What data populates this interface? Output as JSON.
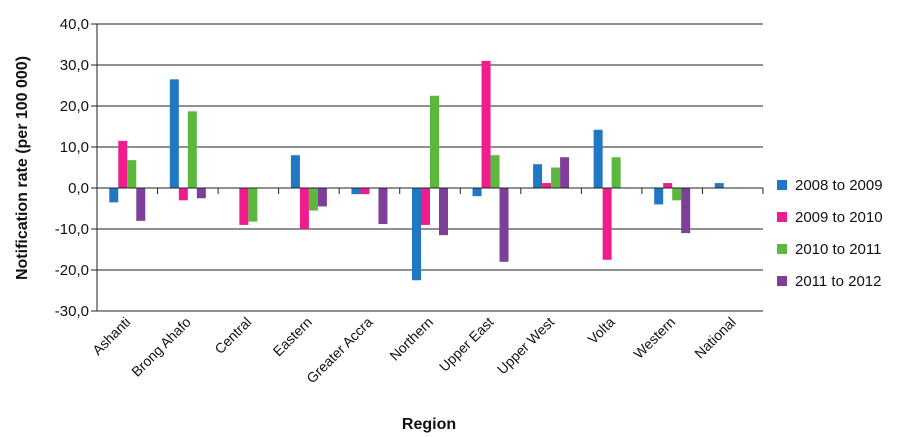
{
  "chart_data": {
    "type": "bar",
    "title": "",
    "xlabel": "Region",
    "ylabel": "Notification rate (per 100 000)",
    "ylim": [
      -30,
      40
    ],
    "yticks": [
      -30,
      -20,
      -10,
      0,
      10,
      20,
      30,
      40
    ],
    "ytick_labels": [
      "-30,0",
      "-20,0",
      "-10,0",
      "0,0",
      "10,0",
      "20,0",
      "30,0",
      "40,0"
    ],
    "grid": "horizontal",
    "legend_position": "right",
    "categories": [
      "Ashanti",
      "Brong Ahafo",
      "Central",
      "Eastern",
      "Greater Accra",
      "Northern",
      "Upper East",
      "Upper West",
      "Volta",
      "Western",
      "National"
    ],
    "series": [
      {
        "name": "2008 to 2009",
        "color": "#1f78c1",
        "values": [
          -3.5,
          26.5,
          0,
          8,
          -1.5,
          -22.5,
          -2,
          5.8,
          14.2,
          -4,
          1.2
        ]
      },
      {
        "name": "2009 to 2010",
        "color": "#ee1c8c",
        "values": [
          11.5,
          -3,
          -9,
          -10,
          -1.5,
          -9,
          31,
          1.2,
          -17.5,
          1.2,
          0
        ]
      },
      {
        "name": "2010 to 2011",
        "color": "#5cb83d",
        "values": [
          6.8,
          18.7,
          -8.2,
          -5.5,
          0,
          22.5,
          8,
          5,
          7.5,
          -3,
          0
        ]
      },
      {
        "name": "2011 to 2012",
        "color": "#7e3f98",
        "values": [
          -8,
          -2.5,
          0,
          -4.5,
          -8.8,
          -11.5,
          -18,
          7.5,
          0,
          -11,
          0
        ]
      }
    ]
  }
}
